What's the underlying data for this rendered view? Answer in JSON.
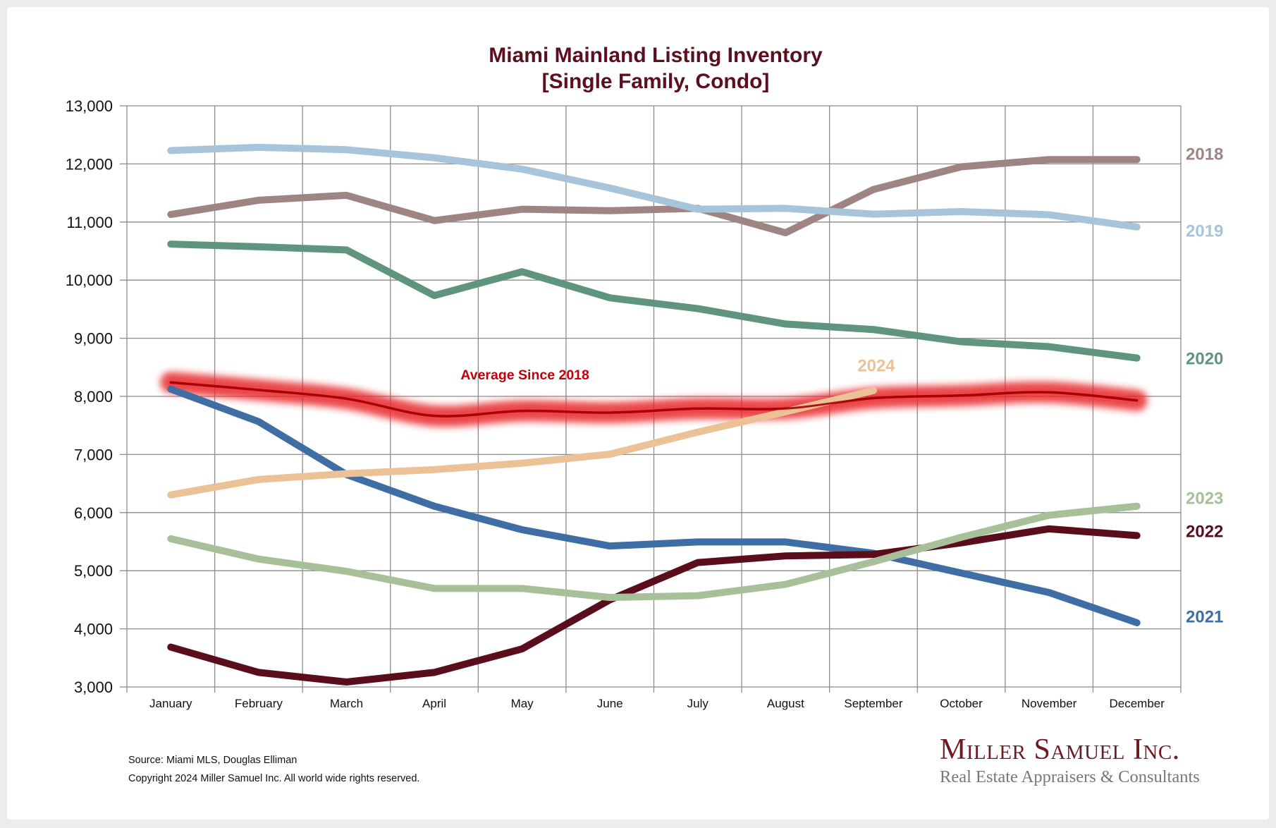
{
  "chart_data": {
    "type": "line",
    "title": "Miami Mainland Listing Inventory",
    "subtitle": "[Single Family, Condo]",
    "xlabel": "",
    "ylabel": "",
    "ylim": [
      3000,
      13000
    ],
    "yticks": [
      3000,
      4000,
      5000,
      6000,
      7000,
      8000,
      9000,
      10000,
      11000,
      12000,
      13000
    ],
    "ytick_labels": [
      "3,000",
      "4,000",
      "5,000",
      "6,000",
      "7,000",
      "8,000",
      "9,000",
      "10,000",
      "11,000",
      "12,000",
      "13,000"
    ],
    "grid": true,
    "legend": "right (end-of-line labels)",
    "categories": [
      "January",
      "February",
      "March",
      "April",
      "May",
      "June",
      "July",
      "August",
      "September",
      "October",
      "November",
      "December"
    ],
    "series": [
      {
        "name": "2018",
        "color": "#9e8584",
        "values": [
          11130,
          11375,
          11460,
          11025,
          11220,
          11195,
          11235,
          10815,
          11560,
          11950,
          12075,
          12075
        ]
      },
      {
        "name": "2019",
        "color": "#a7c4da",
        "values": [
          12230,
          12285,
          12245,
          12105,
          11910,
          11585,
          11220,
          11235,
          11135,
          11180,
          11125,
          10915
        ]
      },
      {
        "name": "2020",
        "color": "#5f957c",
        "values": [
          10620,
          10575,
          10520,
          9735,
          10145,
          9695,
          9510,
          9245,
          9150,
          8940,
          8855,
          8660
        ]
      },
      {
        "name": "2021",
        "color": "#3f6ea5",
        "values": [
          8125,
          7565,
          6655,
          6110,
          5705,
          5425,
          5495,
          5495,
          5300,
          4960,
          4625,
          4105
        ]
      },
      {
        "name": "2022",
        "color": "#5a0e1c",
        "values": [
          3685,
          3250,
          3085,
          3250,
          3655,
          4500,
          5140,
          5255,
          5280,
          5480,
          5720,
          5605
        ]
      },
      {
        "name": "2023",
        "color": "#a8c09a",
        "values": [
          5550,
          5200,
          4990,
          4695,
          4695,
          4540,
          4570,
          4765,
          5155,
          5575,
          5955,
          6110
        ]
      },
      {
        "name": "2024",
        "color": "#ecc196",
        "values": [
          6305,
          6570,
          6670,
          6740,
          6850,
          7005,
          7385,
          7735,
          8100
        ]
      },
      {
        "name": "Average  Since 2018",
        "color": "#a80008",
        "glow": "#e8262b",
        "values": [
          8240,
          8110,
          7960,
          7665,
          7750,
          7720,
          7790,
          7790,
          7970,
          8015,
          8070,
          7930
        ]
      }
    ],
    "annotations": [
      "Average  Since 2018",
      "2024",
      "2018",
      "2019",
      "2020",
      "2023",
      "2022",
      "2021"
    ]
  },
  "footer": {
    "source": "Source: Miami MLS, Douglas Elliman",
    "copyright": "Copyright 2024 Miller Samuel Inc.  All world wide rights reserved."
  },
  "logo": {
    "name": "Miller Samuel Inc.",
    "tagline": "Real Estate Appraisers & Consultants"
  }
}
